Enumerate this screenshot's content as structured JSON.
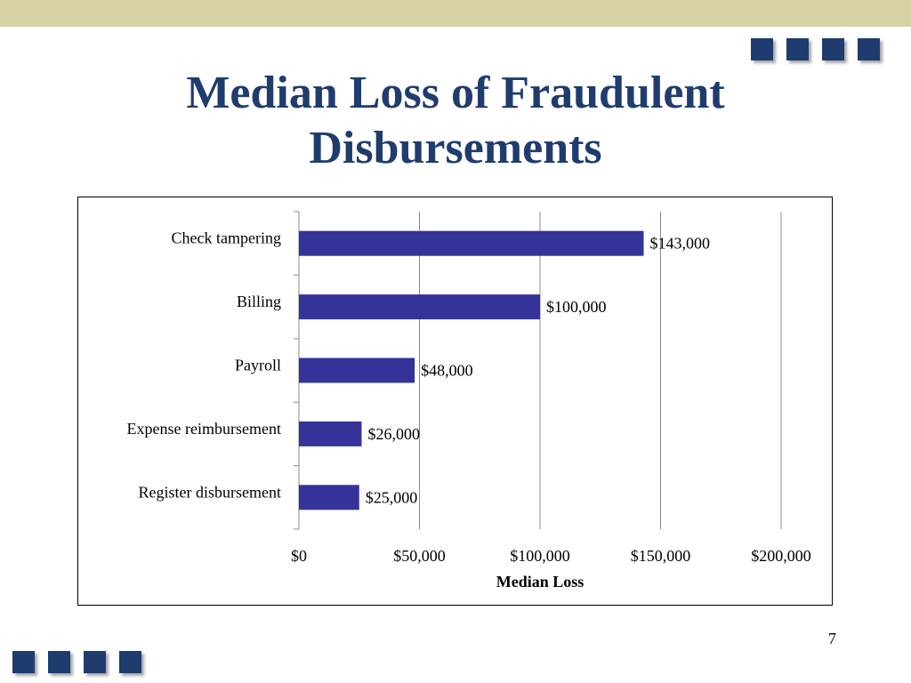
{
  "slide": {
    "title_line1": "Median Loss of Fraudulent",
    "title_line2": "Disbursements",
    "page_number": "7",
    "accent_color": "#1f3c6e",
    "band_color": "#d6d2a6"
  },
  "chart_data": {
    "type": "bar",
    "orientation": "horizontal",
    "categories": [
      "Check tampering",
      "Billing",
      "Payroll",
      "Expense reimbursement",
      "Register disbursement"
    ],
    "values": [
      143000,
      100000,
      48000,
      26000,
      25000
    ],
    "data_labels": [
      "$143,000",
      "$100,000",
      "$48,000",
      "$26,000",
      "$25,000"
    ],
    "xlabel": "Median Loss",
    "ylabel": "",
    "xlim": [
      0,
      200000
    ],
    "x_ticks": [
      0,
      50000,
      100000,
      150000,
      200000
    ],
    "x_tick_labels": [
      "$0",
      "$50,000",
      "$100,000",
      "$150,000",
      "$200,000"
    ],
    "bar_color": "#343399",
    "grid": true
  }
}
